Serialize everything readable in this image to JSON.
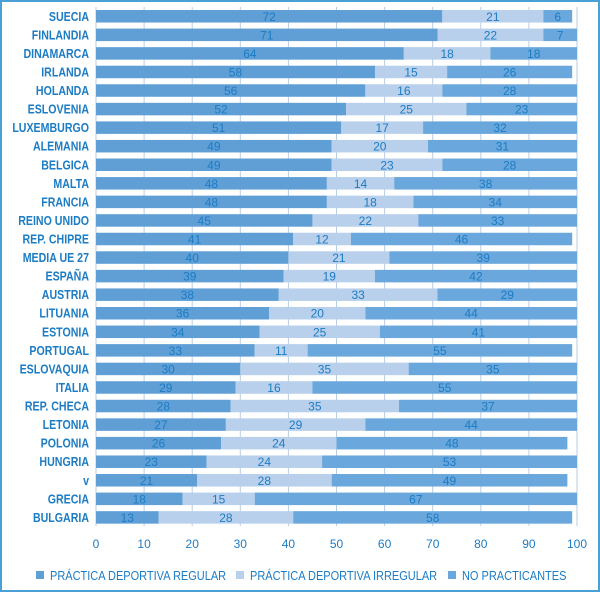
{
  "chart_data": {
    "type": "bar",
    "orientation": "horizontal",
    "stacked": true,
    "title": "",
    "xlabel": "",
    "ylabel": "",
    "xlim": [
      0,
      100
    ],
    "xticks": [
      0,
      10,
      20,
      30,
      40,
      50,
      60,
      70,
      80,
      90,
      100
    ],
    "grid": true,
    "legend_position": "bottom",
    "categories": [
      "SUECIA",
      "FINLANDIA",
      "DINAMARCA",
      "IRLANDA",
      "HOLANDA",
      "ESLOVENIA",
      "LUXEMBURGO",
      "ALEMANIA",
      "BELGICA",
      "MALTA",
      "FRANCIA",
      "REINO UNIDO",
      "REP. CHIPRE",
      "MEDIA UE 27",
      "ESPAÑA",
      "AUSTRIA",
      "LITUANIA",
      "ESTONIA",
      "PORTUGAL",
      "ESLOVAQUIA",
      "ITALIA",
      "REP. CHECA",
      "LETONIA",
      "POLONIA",
      "HUNGRIA",
      "v",
      "GRECIA",
      "BULGARIA"
    ],
    "series": [
      {
        "name": "PRÁCTICA DEPORTIVA REGULAR",
        "color": "#5f9fd6",
        "values": [
          72,
          71,
          64,
          58,
          56,
          52,
          51,
          49,
          49,
          48,
          48,
          45,
          41,
          40,
          39,
          38,
          36,
          34,
          33,
          30,
          29,
          28,
          27,
          26,
          23,
          21,
          18,
          13
        ]
      },
      {
        "name": "PRÁCTICA DEPORTIVA IRREGULAR",
        "color": "#b8d0ec",
        "values": [
          21,
          22,
          18,
          15,
          16,
          25,
          17,
          20,
          23,
          14,
          18,
          22,
          12,
          21,
          19,
          33,
          20,
          25,
          11,
          35,
          16,
          35,
          29,
          24,
          24,
          28,
          15,
          28
        ]
      },
      {
        "name": "NO PRACTICANTES",
        "color": "#6aa7dc",
        "values": [
          6,
          7,
          18,
          26,
          28,
          23,
          32,
          31,
          28,
          38,
          34,
          33,
          46,
          39,
          42,
          29,
          44,
          41,
          55,
          35,
          55,
          37,
          44,
          48,
          53,
          49,
          67,
          58
        ]
      }
    ]
  },
  "colors": {
    "label_text": "#1c7cc4",
    "grid": "#b9cde3",
    "frame": "#4a9fd4"
  }
}
